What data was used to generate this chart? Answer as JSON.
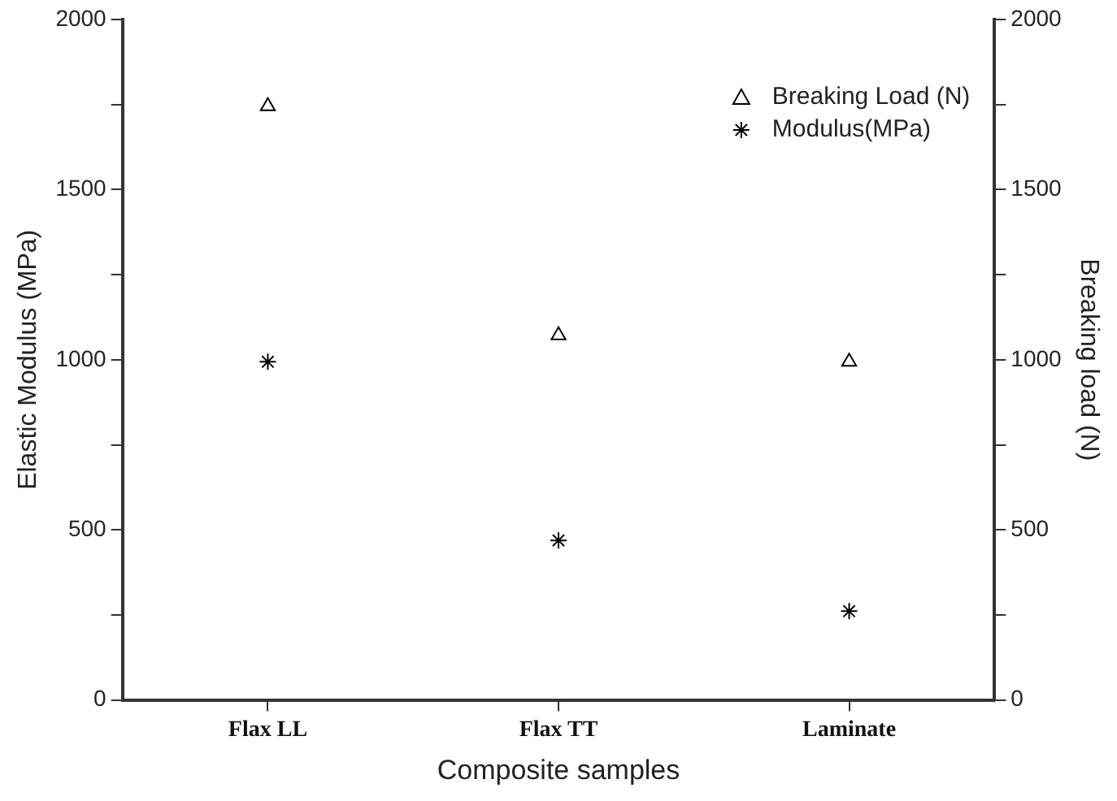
{
  "chart_data": {
    "type": "scatter",
    "xlabel": "Composite samples",
    "ylabel": "Elastic Modulus (MPa)",
    "y2label": "Breaking load (N)",
    "categories": [
      "Flax LL",
      "Flax TT",
      "Laminate"
    ],
    "series": [
      {
        "name": "Breaking Load (N)",
        "color": "#000000",
        "marker": "triangle",
        "values": [
          1745,
          1072,
          994
        ]
      },
      {
        "name": "Modulus(MPa)",
        "color": "#000000",
        "marker": "cross",
        "values": [
          994,
          469,
          261
        ]
      }
    ],
    "ylim": [
      0,
      2000
    ],
    "yticks": [
      0,
      {
        "value": 250,
        "label": null
      },
      500,
      {
        "value": 750,
        "label": null
      },
      1000,
      {
        "value": 1250,
        "label": null
      },
      1500,
      {
        "value": 1750,
        "label": null
      },
      2000
    ],
    "y2lim": [
      0,
      2000
    ],
    "y2ticks": [
      0,
      {
        "value": 250,
        "label": null
      },
      500,
      {
        "value": 750,
        "label": null
      },
      1000,
      {
        "value": 1250,
        "label": null
      },
      1500,
      {
        "value": 1750,
        "label": null
      },
      2000
    ],
    "legend": "top right",
    "grid": false
  }
}
